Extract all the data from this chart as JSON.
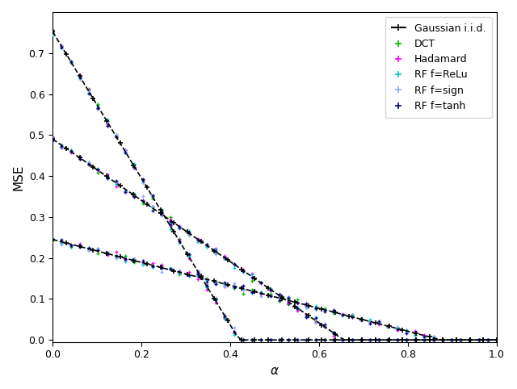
{
  "curves": [
    {
      "alpha_transition": 0.42,
      "y_start": 0.752
    },
    {
      "alpha_transition": 0.655,
      "y_start": 0.49
    },
    {
      "alpha_transition": 0.875,
      "y_start": 0.245
    }
  ],
  "gaussian_n_points": 100,
  "scatter_n_points": 50,
  "scatter_colors": [
    "#00bb00",
    "#ff00ff",
    "#00cccc",
    "#88aaff",
    "#000088"
  ],
  "scatter_labels": [
    "DCT",
    "Hadamard",
    "RF f=ReLu",
    "RF f=sign",
    "RF f=tanh"
  ],
  "gaussian_label": "Gaussian i.i.d.",
  "xlabel": "$\\alpha$",
  "ylabel": "MSE",
  "xlim": [
    0.0,
    1.0
  ],
  "ylim": [
    -0.005,
    0.8
  ],
  "yticks": [
    0.0,
    0.1,
    0.2,
    0.3,
    0.4,
    0.5,
    0.6,
    0.7
  ],
  "xticks": [
    0.0,
    0.2,
    0.4,
    0.6,
    0.8,
    1.0
  ],
  "figsize": [
    6.4,
    4.82
  ],
  "dpi": 100,
  "noise_std": 0.004
}
